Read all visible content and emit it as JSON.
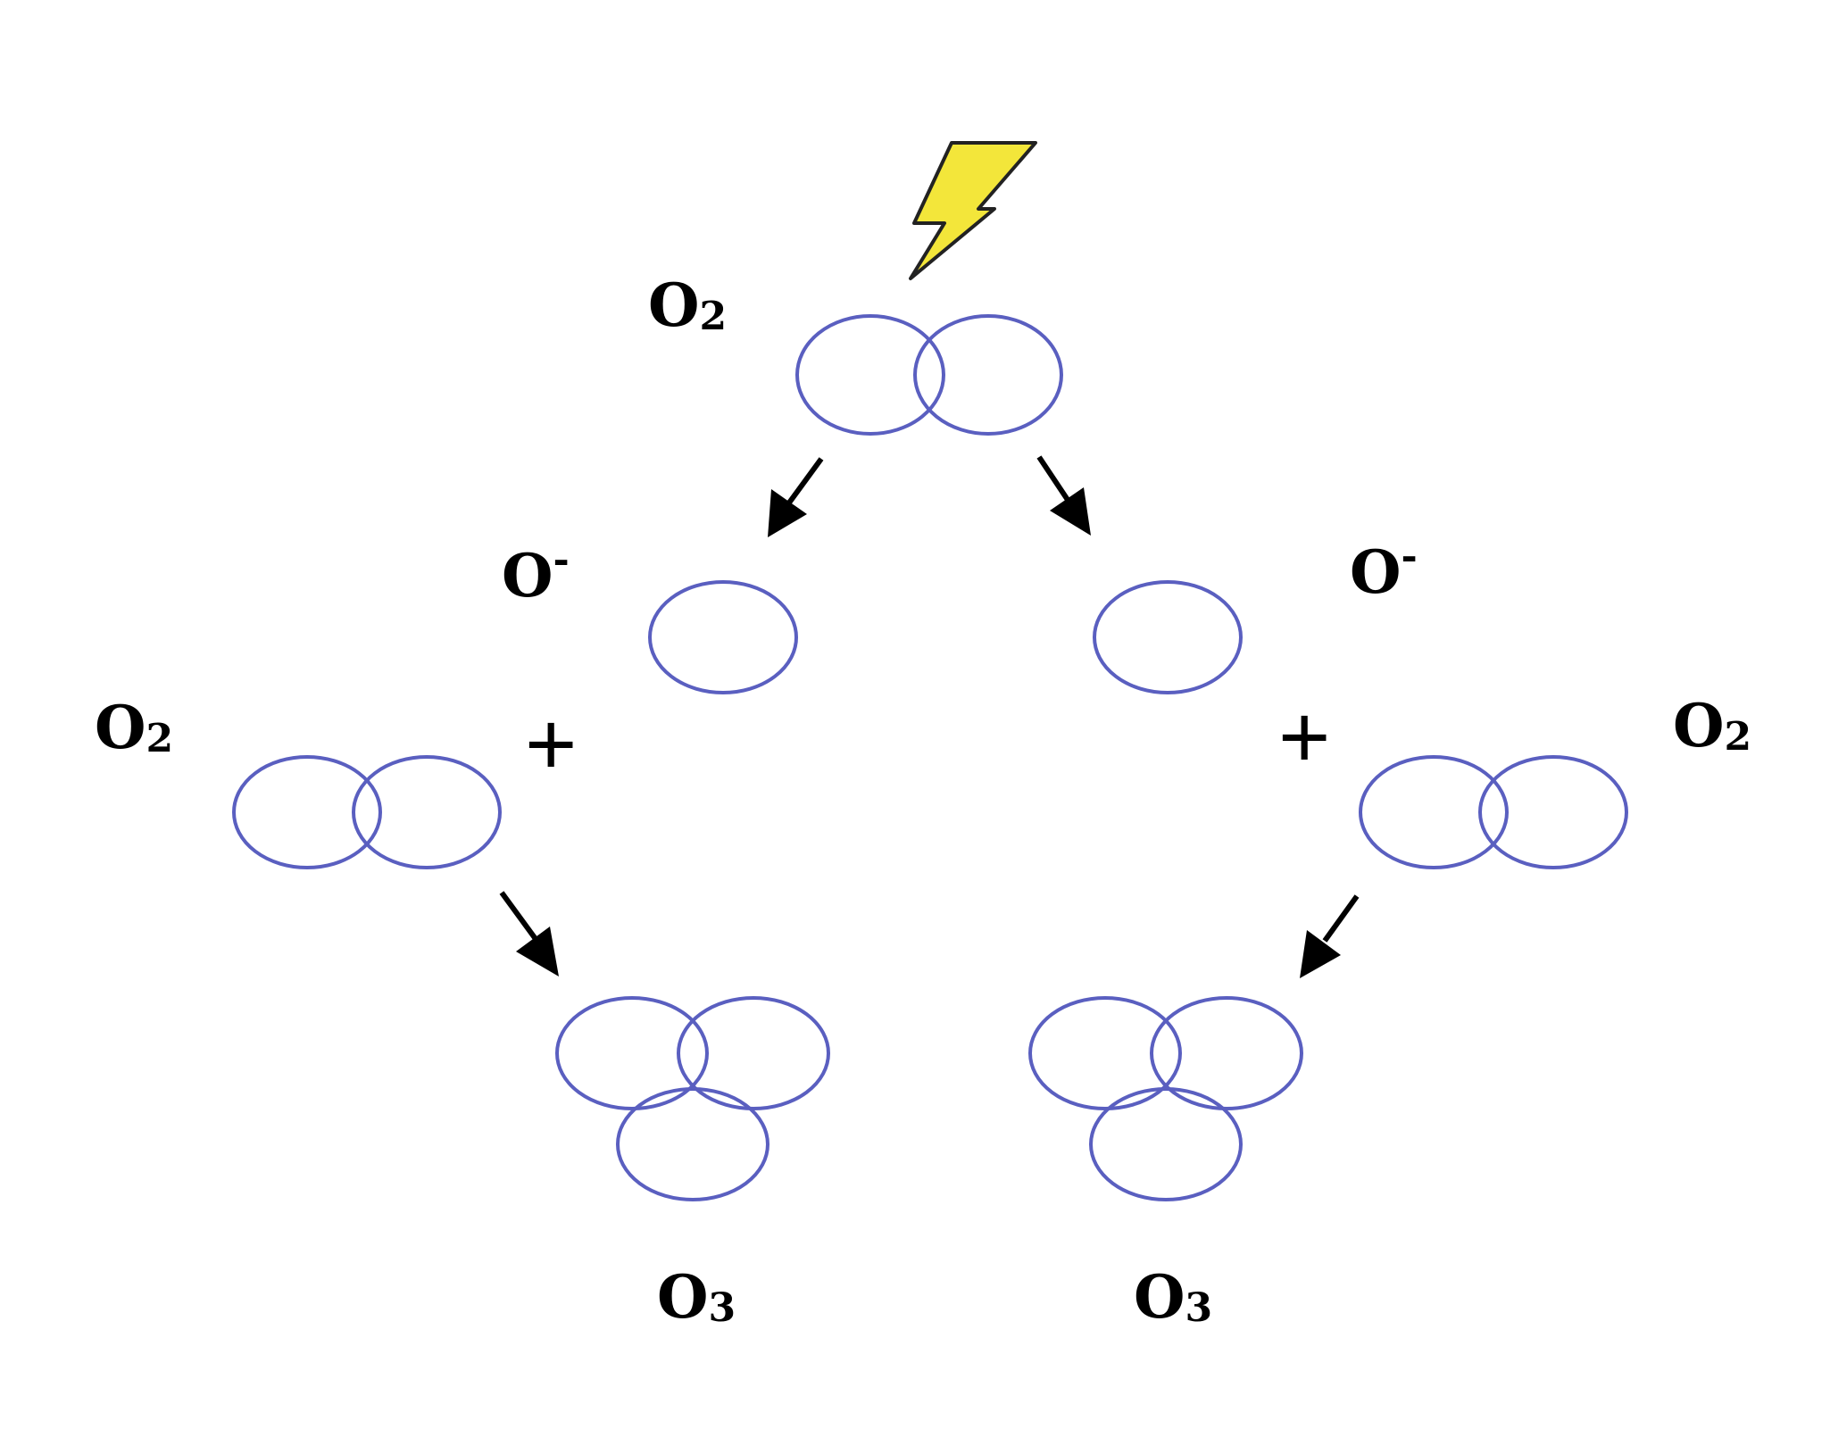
{
  "molecules": {
    "top": {
      "symbol": "O",
      "subscript": "2"
    },
    "left_reactant": {
      "symbol": "O",
      "subscript": "2"
    },
    "right_reactant": {
      "symbol": "O",
      "subscript": "2"
    },
    "left_product": {
      "symbol": "O",
      "subscript": "3"
    },
    "right_product": {
      "symbol": "O",
      "subscript": "3"
    }
  },
  "atoms": {
    "left_ion": {
      "symbol": "O",
      "superscript": "-"
    },
    "right_ion": {
      "symbol": "O",
      "superscript": "-"
    }
  },
  "operators": {
    "plus_left": "+",
    "plus_right": "+"
  },
  "icons": {
    "energy": "lightning-bolt-icon"
  },
  "colors": {
    "atom_outline": "#5a5fc0",
    "bolt_fill": "#f3e63a",
    "text": "#000000"
  }
}
